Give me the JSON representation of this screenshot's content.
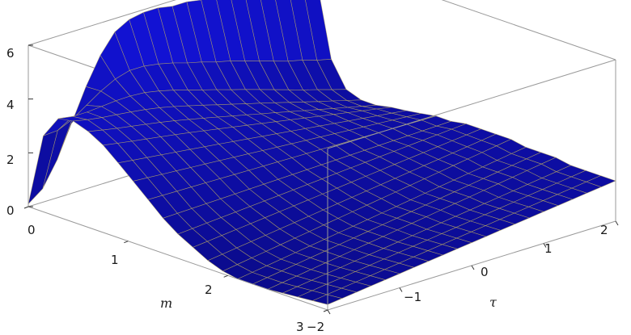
{
  "chart_data": {
    "type": "surface3d",
    "xlabel": "m",
    "ylabel": "τ",
    "zlabel": "",
    "xlim": [
      0,
      3
    ],
    "ylim": [
      -2,
      2
    ],
    "zlim": [
      0,
      6
    ],
    "x_ticks": [
      "0",
      "1",
      "2",
      "3"
    ],
    "y_ticks": [
      "−2",
      "−1",
      "0",
      "1",
      "2"
    ],
    "z_ticks": [
      "0",
      "2",
      "4",
      "6"
    ],
    "surface_color": "#1a1ab8",
    "mesh_color": "#b8a860",
    "box_color": "#9a9a9a",
    "grid": false,
    "m_samples": [
      0,
      0.15,
      0.3,
      0.45,
      0.6,
      0.75,
      0.9,
      1.05,
      1.2,
      1.35,
      1.5,
      1.65,
      1.8,
      1.95,
      2.1,
      2.25,
      2.4,
      2.55,
      2.7,
      2.85,
      3.0
    ],
    "tau_samples": [
      -2,
      -1.8,
      -1.6,
      -1.4,
      -1.2,
      -1,
      -0.8,
      -0.6,
      -0.4,
      -0.2,
      0,
      0.2,
      0.4,
      0.6,
      0.8,
      1,
      1.2,
      1.4,
      1.6,
      1.8,
      2
    ],
    "edge_m0_values": [
      0.1,
      0.5,
      1.4,
      2.6,
      3.8,
      4.8,
      5.5,
      5.8,
      5.9,
      5.9,
      5.8,
      5.8,
      5.7,
      5.7,
      5.6,
      5.5,
      5.4,
      5.3,
      5.3,
      5.2,
      5.2
    ],
    "edge_tau_min_values": [
      5.2,
      4.9,
      4.5,
      4.1,
      3.7,
      3.3,
      2.8,
      2.3,
      1.8,
      1.3,
      0.9,
      0.6,
      0.3,
      0.1,
      0.0,
      0.0,
      0.0,
      0.05,
      0.1,
      0.15,
      0.2
    ],
    "edge_tau_max_values": [
      0.1,
      0.3,
      0.6,
      0.9,
      1.1,
      1.3,
      1.4,
      1.5,
      1.6,
      1.6,
      1.7,
      1.7,
      1.7,
      1.7,
      1.6,
      1.6,
      1.6,
      1.5,
      1.5,
      1.5,
      1.5
    ]
  }
}
